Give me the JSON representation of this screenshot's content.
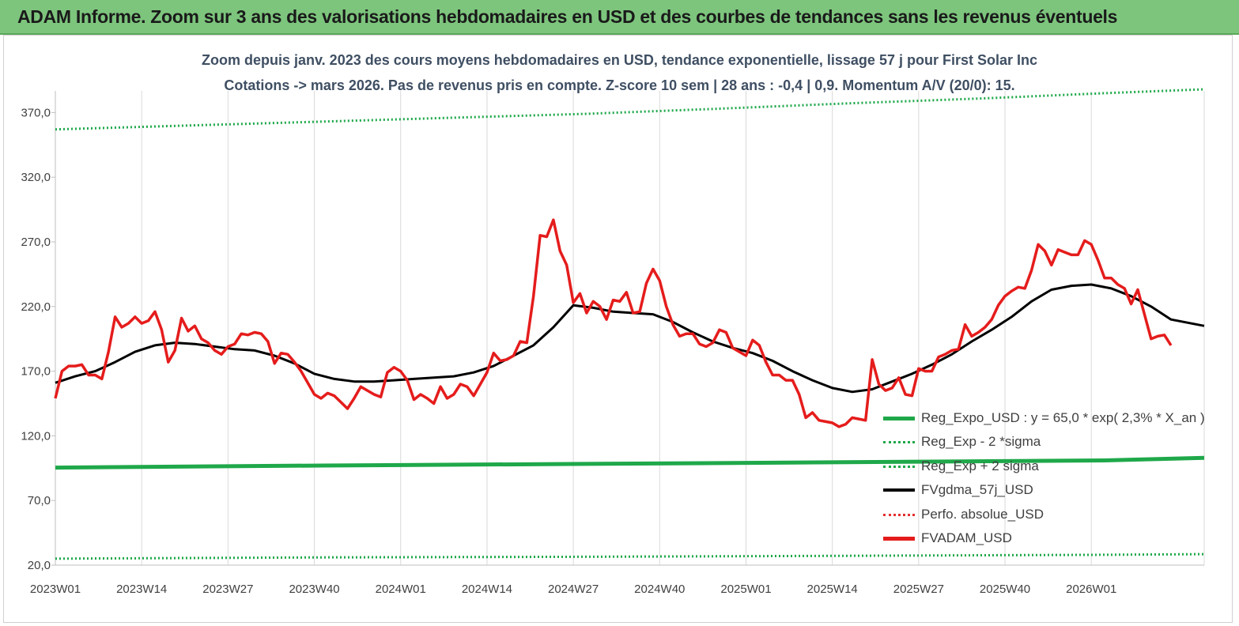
{
  "banner": {
    "title": "ADAM Informe. Zoom sur 3 ans des valorisations hebdomadaires en USD et des courbes de tendances sans les revenus éventuels"
  },
  "chart_data": {
    "type": "line",
    "title": "Zoom depuis janv. 2023 des cours moyens hebdomadaires en USD, tendance exponentielle, lissage 57 j pour First Solar Inc",
    "subtitle": "Cotations -> mars 2026. Pas de revenus pris en compte. Z-score 10 sem | 28 ans : -0,4 | 0,9. Momentum A/V (20/0): 15.",
    "y_ticks": [
      "20,0",
      "70,0",
      "120,0",
      "170,0",
      "220,0",
      "270,0",
      "320,0",
      "370,0"
    ],
    "x_ticks": [
      "2023W01",
      "2023W14",
      "2023W27",
      "2023W40",
      "2024W01",
      "2024W14",
      "2024W27",
      "2024W40",
      "2025W01",
      "2025W14",
      "2025W27",
      "2025W40",
      "2026W01"
    ],
    "ylim": [
      20,
      390
    ],
    "grid": "vertical",
    "legend_position": "bottom-right",
    "series": [
      {
        "name": "Reg_Expo_USD : y = 65,0 * exp( 2,3% *  X_an )",
        "color": "#1fa84a",
        "style": "solid-thick",
        "points": [
          [
            0,
            95.4
          ],
          [
            40,
            97.0
          ],
          [
            80,
            98.3
          ],
          [
            119,
            99.6
          ],
          [
            158,
            101.0
          ],
          [
            173,
            103.0
          ]
        ]
      },
      {
        "name": "Reg_Exp - 2 *sigma",
        "color": "#1fa84a",
        "style": "dotted",
        "points": [
          [
            0,
            25.0
          ],
          [
            40,
            26.0
          ],
          [
            80,
            26.5
          ],
          [
            119,
            27.2
          ],
          [
            158,
            28.0
          ],
          [
            173,
            28.5
          ]
        ]
      },
      {
        "name": "Reg_Exp + 2 sigma",
        "color": "#1fa84a",
        "style": "dotted",
        "points": [
          [
            0,
            357
          ],
          [
            20,
            360
          ],
          [
            40,
            363
          ],
          [
            60,
            366
          ],
          [
            80,
            369
          ],
          [
            100,
            373
          ],
          [
            119,
            377
          ],
          [
            140,
            381
          ],
          [
            158,
            385
          ],
          [
            173,
            388
          ]
        ]
      },
      {
        "name": "FVgdma_57j_USD",
        "color": "#000000",
        "style": "solid",
        "points": [
          [
            0,
            161
          ],
          [
            3,
            166
          ],
          [
            6,
            170
          ],
          [
            9,
            177
          ],
          [
            12,
            185
          ],
          [
            15,
            190
          ],
          [
            18,
            192
          ],
          [
            21,
            191
          ],
          [
            24,
            189
          ],
          [
            27,
            187
          ],
          [
            30,
            186
          ],
          [
            33,
            182
          ],
          [
            36,
            176
          ],
          [
            39,
            168
          ],
          [
            42,
            164
          ],
          [
            45,
            162
          ],
          [
            48,
            162
          ],
          [
            51,
            163
          ],
          [
            54,
            164
          ],
          [
            57,
            165
          ],
          [
            60,
            166
          ],
          [
            63,
            169
          ],
          [
            66,
            174
          ],
          [
            69,
            182
          ],
          [
            72,
            190
          ],
          [
            75,
            204
          ],
          [
            78,
            221
          ],
          [
            81,
            219
          ],
          [
            84,
            216
          ],
          [
            87,
            215
          ],
          [
            90,
            214
          ],
          [
            93,
            208
          ],
          [
            96,
            200
          ],
          [
            99,
            193
          ],
          [
            102,
            188
          ],
          [
            105,
            184
          ],
          [
            108,
            178
          ],
          [
            111,
            170
          ],
          [
            114,
            163
          ],
          [
            117,
            157
          ],
          [
            120,
            154
          ],
          [
            123,
            156
          ],
          [
            126,
            162
          ],
          [
            129,
            168
          ],
          [
            132,
            175
          ],
          [
            135,
            183
          ],
          [
            138,
            193
          ],
          [
            141,
            202
          ],
          [
            144,
            212
          ],
          [
            147,
            224
          ],
          [
            150,
            233
          ],
          [
            153,
            236
          ],
          [
            156,
            237
          ],
          [
            159,
            234
          ],
          [
            162,
            228
          ],
          [
            165,
            220
          ],
          [
            168,
            210
          ],
          [
            173,
            205
          ]
        ]
      },
      {
        "name": "Perfo. absolue_USD",
        "color": "#e53030",
        "style": "dotted",
        "points": []
      },
      {
        "name": "FVADAM_USD",
        "color": "#e51c1c",
        "style": "solid-thick",
        "points": [
          [
            0,
            149
          ],
          [
            1,
            170
          ],
          [
            2,
            174
          ],
          [
            3,
            174
          ],
          [
            4,
            175
          ],
          [
            5,
            167
          ],
          [
            6,
            167
          ],
          [
            7,
            164
          ],
          [
            8,
            185
          ],
          [
            9,
            212
          ],
          [
            10,
            204
          ],
          [
            11,
            207
          ],
          [
            12,
            212
          ],
          [
            13,
            207
          ],
          [
            14,
            209
          ],
          [
            15,
            216
          ],
          [
            16,
            202
          ],
          [
            17,
            177
          ],
          [
            18,
            186
          ],
          [
            19,
            211
          ],
          [
            20,
            201
          ],
          [
            21,
            205
          ],
          [
            22,
            195
          ],
          [
            23,
            192
          ],
          [
            24,
            186
          ],
          [
            25,
            183
          ],
          [
            26,
            189
          ],
          [
            27,
            191
          ],
          [
            28,
            199
          ],
          [
            29,
            198
          ],
          [
            30,
            200
          ],
          [
            31,
            199
          ],
          [
            32,
            193
          ],
          [
            33,
            176
          ],
          [
            34,
            184
          ],
          [
            35,
            183
          ],
          [
            36,
            177
          ],
          [
            37,
            170
          ],
          [
            38,
            161
          ],
          [
            39,
            152
          ],
          [
            40,
            149
          ],
          [
            41,
            153
          ],
          [
            42,
            151
          ],
          [
            43,
            146
          ],
          [
            44,
            141
          ],
          [
            45,
            149
          ],
          [
            46,
            158
          ],
          [
            47,
            155
          ],
          [
            48,
            152
          ],
          [
            49,
            150
          ],
          [
            50,
            169
          ],
          [
            51,
            173
          ],
          [
            52,
            170
          ],
          [
            53,
            163
          ],
          [
            54,
            148
          ],
          [
            55,
            152
          ],
          [
            56,
            149
          ],
          [
            57,
            145
          ],
          [
            58,
            158
          ],
          [
            59,
            149
          ],
          [
            60,
            152
          ],
          [
            61,
            160
          ],
          [
            62,
            158
          ],
          [
            63,
            151
          ],
          [
            64,
            160
          ],
          [
            65,
            169
          ],
          [
            66,
            184
          ],
          [
            67,
            178
          ],
          [
            68,
            179
          ],
          [
            69,
            182
          ],
          [
            70,
            193
          ],
          [
            71,
            192
          ],
          [
            72,
            228
          ],
          [
            73,
            275
          ],
          [
            74,
            274
          ],
          [
            75,
            287
          ],
          [
            76,
            263
          ],
          [
            77,
            252
          ],
          [
            78,
            223
          ],
          [
            79,
            230
          ],
          [
            80,
            215
          ],
          [
            81,
            224
          ],
          [
            82,
            220
          ],
          [
            83,
            210
          ],
          [
            84,
            225
          ],
          [
            85,
            224
          ],
          [
            86,
            231
          ],
          [
            87,
            215
          ],
          [
            88,
            216
          ],
          [
            89,
            238
          ],
          [
            90,
            249
          ],
          [
            91,
            240
          ],
          [
            92,
            220
          ],
          [
            93,
            206
          ],
          [
            94,
            197
          ],
          [
            95,
            199
          ],
          [
            96,
            199
          ],
          [
            97,
            191
          ],
          [
            98,
            189
          ],
          [
            99,
            192
          ],
          [
            100,
            202
          ],
          [
            101,
            200
          ],
          [
            102,
            188
          ],
          [
            103,
            185
          ],
          [
            104,
            182
          ],
          [
            105,
            194
          ],
          [
            106,
            190
          ],
          [
            107,
            177
          ],
          [
            108,
            167
          ],
          [
            109,
            167
          ],
          [
            110,
            163
          ],
          [
            111,
            163
          ],
          [
            112,
            152
          ],
          [
            113,
            134
          ],
          [
            114,
            138
          ],
          [
            115,
            132
          ],
          [
            116,
            131
          ],
          [
            117,
            130
          ],
          [
            118,
            127
          ],
          [
            119,
            129
          ],
          [
            120,
            134
          ],
          [
            121,
            133
          ],
          [
            122,
            132
          ],
          [
            123,
            179
          ],
          [
            124,
            160
          ],
          [
            125,
            155
          ],
          [
            126,
            157
          ],
          [
            127,
            165
          ],
          [
            128,
            152
          ],
          [
            129,
            151
          ],
          [
            130,
            172
          ],
          [
            131,
            170
          ],
          [
            132,
            170
          ],
          [
            133,
            181
          ],
          [
            134,
            183
          ],
          [
            135,
            186
          ],
          [
            136,
            187
          ],
          [
            137,
            206
          ],
          [
            138,
            197
          ],
          [
            139,
            200
          ],
          [
            140,
            204
          ],
          [
            141,
            210
          ],
          [
            142,
            221
          ],
          [
            143,
            228
          ],
          [
            144,
            232
          ],
          [
            145,
            235
          ],
          [
            146,
            234
          ],
          [
            147,
            248
          ],
          [
            148,
            268
          ],
          [
            149,
            263
          ],
          [
            150,
            252
          ],
          [
            151,
            264
          ],
          [
            152,
            262
          ],
          [
            153,
            260
          ],
          [
            154,
            260
          ],
          [
            155,
            271
          ],
          [
            156,
            268
          ],
          [
            157,
            256
          ],
          [
            158,
            242
          ],
          [
            159,
            242
          ],
          [
            160,
            237
          ],
          [
            161,
            234
          ],
          [
            162,
            222
          ],
          [
            163,
            233
          ],
          [
            164,
            214
          ],
          [
            165,
            195
          ],
          [
            166,
            197
          ],
          [
            167,
            198
          ],
          [
            168,
            190
          ]
        ]
      }
    ]
  }
}
